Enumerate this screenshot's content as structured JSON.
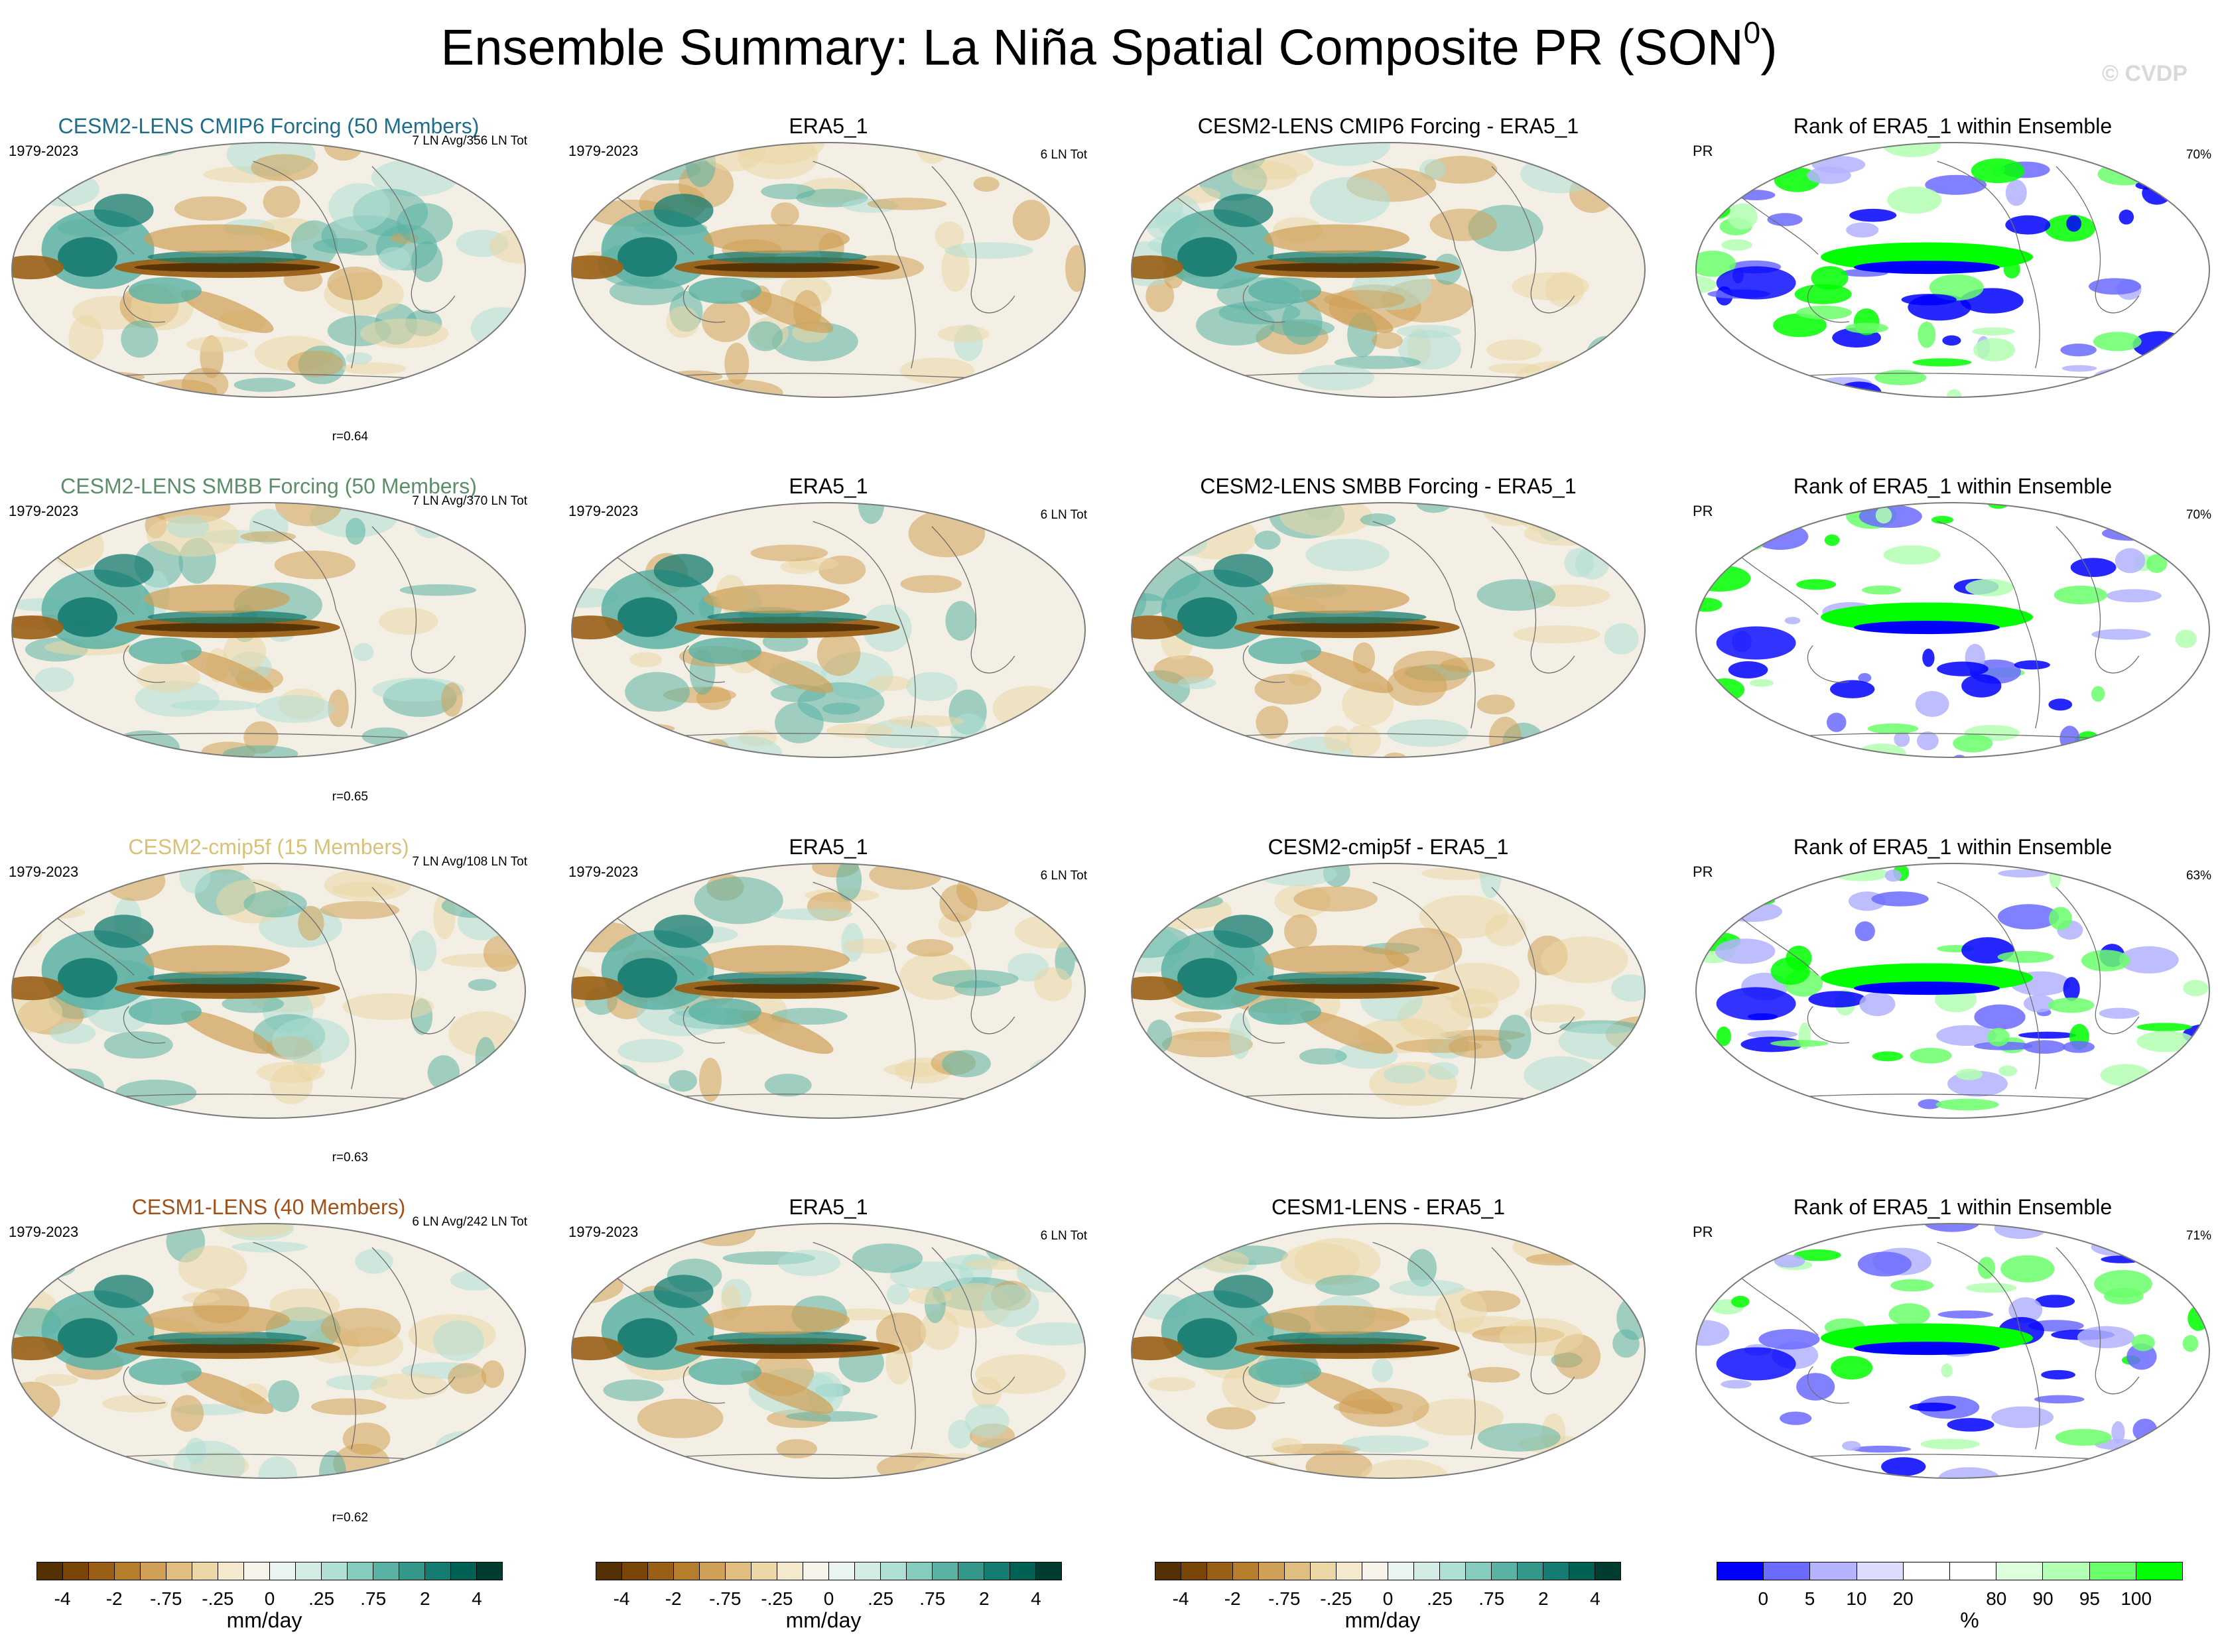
{
  "title": "Ensemble Summary: La Niña Spatial Composite PR (SON",
  "title_sup": "0",
  "title_close": ")",
  "watermark": "© CVDP",
  "rows": [
    {
      "model": {
        "title": "CESM2-LENS CMIP6 Forcing (50 Members)",
        "title_color": "#1d6e8a",
        "period": "1979-2023",
        "info": "7 LN Avg/356 LN Tot",
        "corr": "r=0.64"
      },
      "obs": {
        "title": "ERA5_1",
        "period": "1979-2023",
        "info": "6 LN Tot"
      },
      "diff": {
        "title": "CESM2-LENS CMIP6 Forcing - ERA5_1"
      },
      "rank": {
        "title": "Rank of ERA5_1 within Ensemble",
        "var": "PR",
        "pct": "70%"
      }
    },
    {
      "model": {
        "title": "CESM2-LENS SMBB Forcing (50 Members)",
        "title_color": "#5d8e6a",
        "period": "1979-2023",
        "info": "7 LN Avg/370 LN Tot",
        "corr": "r=0.65"
      },
      "obs": {
        "title": "ERA5_1",
        "period": "1979-2023",
        "info": "6 LN Tot"
      },
      "diff": {
        "title": "CESM2-LENS SMBB Forcing - ERA5_1"
      },
      "rank": {
        "title": "Rank of ERA5_1 within Ensemble",
        "var": "PR",
        "pct": "70%"
      }
    },
    {
      "model": {
        "title": "CESM2-cmip5f (15 Members)",
        "title_color": "#d8c27a",
        "period": "1979-2023",
        "info": "7 LN Avg/108 LN Tot",
        "corr": "r=0.63"
      },
      "obs": {
        "title": "ERA5_1",
        "period": "1979-2023",
        "info": "6 LN Tot"
      },
      "diff": {
        "title": "CESM2-cmip5f - ERA5_1"
      },
      "rank": {
        "title": "Rank of ERA5_1 within Ensemble",
        "var": "PR",
        "pct": "63%"
      }
    },
    {
      "model": {
        "title": "CESM1-LENS (40 Members)",
        "title_color": "#a0521c",
        "period": "1979-2023",
        "info": "6 LN Avg/242 LN Tot",
        "corr": "r=0.62"
      },
      "obs": {
        "title": "ERA5_1",
        "period": "1979-2023",
        "info": "6 LN Tot"
      },
      "diff": {
        "title": "CESM1-LENS - ERA5_1"
      },
      "rank": {
        "title": "Rank of ERA5_1 within Ensemble",
        "var": "PR",
        "pct": "71%"
      }
    }
  ],
  "colorbars": {
    "pr": {
      "colors": [
        "#543005",
        "#7a4608",
        "#9a5f16",
        "#b67d2c",
        "#cfa055",
        "#dfbe7f",
        "#ebd7a6",
        "#f4e8cd",
        "#f7f3ea",
        "#eaf4f1",
        "#d3ece6",
        "#afdfd5",
        "#85cbbe",
        "#5ab2a4",
        "#35968a",
        "#167b70",
        "#006154",
        "#003d30"
      ],
      "ticks": [
        "-4",
        "-2",
        "-.75",
        "-.25",
        "0",
        ".25",
        ".75",
        "2",
        "4"
      ],
      "units": "mm/day"
    },
    "rank": {
      "colors": [
        "#0000ff",
        "#6b6bff",
        "#b3b3ff",
        "#dcdcff",
        "#ffffff",
        "#ffffff",
        "#dcffdc",
        "#b3ffb3",
        "#6bff6b",
        "#00ff00"
      ],
      "ticks": [
        "0",
        "5",
        "10",
        "20",
        "80",
        "90",
        "95",
        "100"
      ],
      "units": "%"
    }
  }
}
